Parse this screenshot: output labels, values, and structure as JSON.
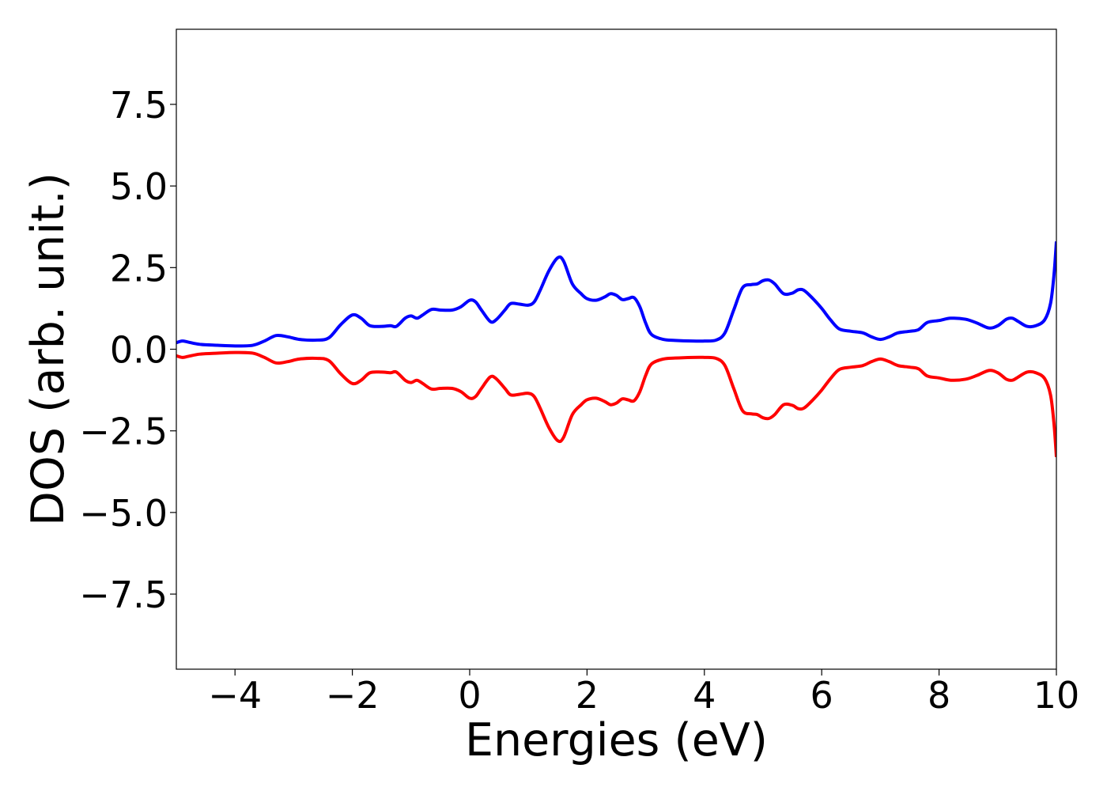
{
  "chart_data": {
    "type": "line",
    "title": "",
    "xlabel": "Energies (eV)",
    "ylabel": "DOS (arb. unit.)",
    "xlim": [
      -5,
      10
    ],
    "ylim": [
      -9.8,
      9.8
    ],
    "x_ticks": [
      -4,
      -2,
      0,
      2,
      4,
      6,
      8,
      10
    ],
    "x_tick_labels": [
      "−4",
      "−2",
      "0",
      "2",
      "4",
      "6",
      "8",
      "10"
    ],
    "y_ticks": [
      -7.5,
      -5.0,
      -2.5,
      0.0,
      2.5,
      5.0,
      7.5
    ],
    "y_tick_labels": [
      "−7.5",
      "−5.0",
      "−2.5",
      "0.0",
      "2.5",
      "5.0",
      "7.5"
    ],
    "grid": false,
    "legend": "none",
    "series": [
      {
        "color": "#0000ff",
        "points": [
          [
            -5.0,
            0.2
          ],
          [
            -4.9,
            0.25
          ],
          [
            -4.8,
            0.22
          ],
          [
            -4.6,
            0.15
          ],
          [
            -4.3,
            0.12
          ],
          [
            -4.0,
            0.1
          ],
          [
            -3.7,
            0.12
          ],
          [
            -3.5,
            0.25
          ],
          [
            -3.3,
            0.42
          ],
          [
            -3.1,
            0.38
          ],
          [
            -2.9,
            0.3
          ],
          [
            -2.6,
            0.28
          ],
          [
            -2.4,
            0.35
          ],
          [
            -2.2,
            0.75
          ],
          [
            -2.0,
            1.05
          ],
          [
            -1.85,
            0.95
          ],
          [
            -1.7,
            0.72
          ],
          [
            -1.5,
            0.7
          ],
          [
            -1.35,
            0.72
          ],
          [
            -1.25,
            0.7
          ],
          [
            -1.1,
            0.95
          ],
          [
            -1.0,
            1.02
          ],
          [
            -0.9,
            0.95
          ],
          [
            -0.8,
            1.05
          ],
          [
            -0.65,
            1.22
          ],
          [
            -0.5,
            1.2
          ],
          [
            -0.3,
            1.2
          ],
          [
            -0.15,
            1.3
          ],
          [
            0.0,
            1.5
          ],
          [
            0.1,
            1.45
          ],
          [
            0.2,
            1.2
          ],
          [
            0.35,
            0.85
          ],
          [
            0.45,
            0.9
          ],
          [
            0.6,
            1.2
          ],
          [
            0.7,
            1.4
          ],
          [
            0.85,
            1.38
          ],
          [
            1.0,
            1.35
          ],
          [
            1.1,
            1.45
          ],
          [
            1.2,
            1.8
          ],
          [
            1.35,
            2.4
          ],
          [
            1.5,
            2.8
          ],
          [
            1.6,
            2.7
          ],
          [
            1.75,
            2.0
          ],
          [
            1.9,
            1.7
          ],
          [
            2.0,
            1.55
          ],
          [
            2.15,
            1.5
          ],
          [
            2.3,
            1.6
          ],
          [
            2.4,
            1.7
          ],
          [
            2.5,
            1.65
          ],
          [
            2.6,
            1.52
          ],
          [
            2.7,
            1.55
          ],
          [
            2.8,
            1.58
          ],
          [
            2.9,
            1.3
          ],
          [
            3.0,
            0.8
          ],
          [
            3.1,
            0.45
          ],
          [
            3.3,
            0.3
          ],
          [
            3.5,
            0.27
          ],
          [
            3.8,
            0.25
          ],
          [
            4.0,
            0.25
          ],
          [
            4.2,
            0.28
          ],
          [
            4.35,
            0.5
          ],
          [
            4.5,
            1.2
          ],
          [
            4.65,
            1.88
          ],
          [
            4.8,
            1.98
          ],
          [
            4.9,
            2.0
          ],
          [
            5.0,
            2.1
          ],
          [
            5.1,
            2.12
          ],
          [
            5.2,
            2.0
          ],
          [
            5.35,
            1.7
          ],
          [
            5.5,
            1.72
          ],
          [
            5.6,
            1.82
          ],
          [
            5.7,
            1.8
          ],
          [
            5.85,
            1.55
          ],
          [
            6.0,
            1.25
          ],
          [
            6.15,
            0.9
          ],
          [
            6.3,
            0.62
          ],
          [
            6.5,
            0.55
          ],
          [
            6.7,
            0.5
          ],
          [
            6.85,
            0.38
          ],
          [
            7.0,
            0.3
          ],
          [
            7.15,
            0.38
          ],
          [
            7.3,
            0.5
          ],
          [
            7.5,
            0.55
          ],
          [
            7.65,
            0.6
          ],
          [
            7.8,
            0.82
          ],
          [
            8.0,
            0.88
          ],
          [
            8.2,
            0.95
          ],
          [
            8.45,
            0.92
          ],
          [
            8.65,
            0.8
          ],
          [
            8.85,
            0.65
          ],
          [
            9.0,
            0.72
          ],
          [
            9.15,
            0.92
          ],
          [
            9.25,
            0.95
          ],
          [
            9.35,
            0.85
          ],
          [
            9.5,
            0.7
          ],
          [
            9.65,
            0.72
          ],
          [
            9.8,
            0.9
          ],
          [
            9.9,
            1.4
          ],
          [
            9.96,
            2.3
          ],
          [
            10.0,
            3.3
          ]
        ]
      },
      {
        "color": "#ff0000",
        "points": [
          [
            -5.0,
            -0.2
          ],
          [
            -4.9,
            -0.25
          ],
          [
            -4.8,
            -0.22
          ],
          [
            -4.6,
            -0.15
          ],
          [
            -4.3,
            -0.12
          ],
          [
            -4.0,
            -0.1
          ],
          [
            -3.7,
            -0.12
          ],
          [
            -3.5,
            -0.25
          ],
          [
            -3.3,
            -0.42
          ],
          [
            -3.1,
            -0.38
          ],
          [
            -2.9,
            -0.3
          ],
          [
            -2.6,
            -0.28
          ],
          [
            -2.4,
            -0.35
          ],
          [
            -2.2,
            -0.75
          ],
          [
            -2.0,
            -1.05
          ],
          [
            -1.85,
            -0.95
          ],
          [
            -1.7,
            -0.72
          ],
          [
            -1.5,
            -0.7
          ],
          [
            -1.35,
            -0.72
          ],
          [
            -1.25,
            -0.7
          ],
          [
            -1.1,
            -0.95
          ],
          [
            -1.0,
            -1.02
          ],
          [
            -0.9,
            -0.95
          ],
          [
            -0.8,
            -1.05
          ],
          [
            -0.65,
            -1.22
          ],
          [
            -0.5,
            -1.2
          ],
          [
            -0.3,
            -1.2
          ],
          [
            -0.15,
            -1.3
          ],
          [
            0.0,
            -1.5
          ],
          [
            0.1,
            -1.45
          ],
          [
            0.2,
            -1.2
          ],
          [
            0.35,
            -0.85
          ],
          [
            0.45,
            -0.9
          ],
          [
            0.6,
            -1.2
          ],
          [
            0.7,
            -1.4
          ],
          [
            0.85,
            -1.38
          ],
          [
            1.0,
            -1.35
          ],
          [
            1.1,
            -1.45
          ],
          [
            1.2,
            -1.8
          ],
          [
            1.35,
            -2.4
          ],
          [
            1.5,
            -2.8
          ],
          [
            1.6,
            -2.7
          ],
          [
            1.75,
            -2.0
          ],
          [
            1.9,
            -1.7
          ],
          [
            2.0,
            -1.55
          ],
          [
            2.15,
            -1.5
          ],
          [
            2.3,
            -1.6
          ],
          [
            2.4,
            -1.7
          ],
          [
            2.5,
            -1.65
          ],
          [
            2.6,
            -1.52
          ],
          [
            2.7,
            -1.55
          ],
          [
            2.8,
            -1.58
          ],
          [
            2.9,
            -1.3
          ],
          [
            3.0,
            -0.8
          ],
          [
            3.1,
            -0.45
          ],
          [
            3.3,
            -0.3
          ],
          [
            3.5,
            -0.27
          ],
          [
            3.8,
            -0.25
          ],
          [
            4.0,
            -0.25
          ],
          [
            4.2,
            -0.28
          ],
          [
            4.35,
            -0.5
          ],
          [
            4.5,
            -1.2
          ],
          [
            4.65,
            -1.88
          ],
          [
            4.8,
            -1.98
          ],
          [
            4.9,
            -2.0
          ],
          [
            5.0,
            -2.1
          ],
          [
            5.1,
            -2.12
          ],
          [
            5.2,
            -2.0
          ],
          [
            5.35,
            -1.7
          ],
          [
            5.5,
            -1.72
          ],
          [
            5.6,
            -1.82
          ],
          [
            5.7,
            -1.8
          ],
          [
            5.85,
            -1.55
          ],
          [
            6.0,
            -1.25
          ],
          [
            6.15,
            -0.9
          ],
          [
            6.3,
            -0.62
          ],
          [
            6.5,
            -0.55
          ],
          [
            6.7,
            -0.5
          ],
          [
            6.85,
            -0.38
          ],
          [
            7.0,
            -0.3
          ],
          [
            7.15,
            -0.38
          ],
          [
            7.3,
            -0.5
          ],
          [
            7.5,
            -0.55
          ],
          [
            7.65,
            -0.6
          ],
          [
            7.8,
            -0.82
          ],
          [
            8.0,
            -0.88
          ],
          [
            8.2,
            -0.95
          ],
          [
            8.45,
            -0.92
          ],
          [
            8.65,
            -0.8
          ],
          [
            8.85,
            -0.65
          ],
          [
            9.0,
            -0.72
          ],
          [
            9.15,
            -0.92
          ],
          [
            9.25,
            -0.95
          ],
          [
            9.35,
            -0.85
          ],
          [
            9.5,
            -0.7
          ],
          [
            9.65,
            -0.72
          ],
          [
            9.8,
            -0.9
          ],
          [
            9.9,
            -1.4
          ],
          [
            9.96,
            -2.3
          ],
          [
            10.0,
            -3.3
          ]
        ]
      }
    ]
  }
}
